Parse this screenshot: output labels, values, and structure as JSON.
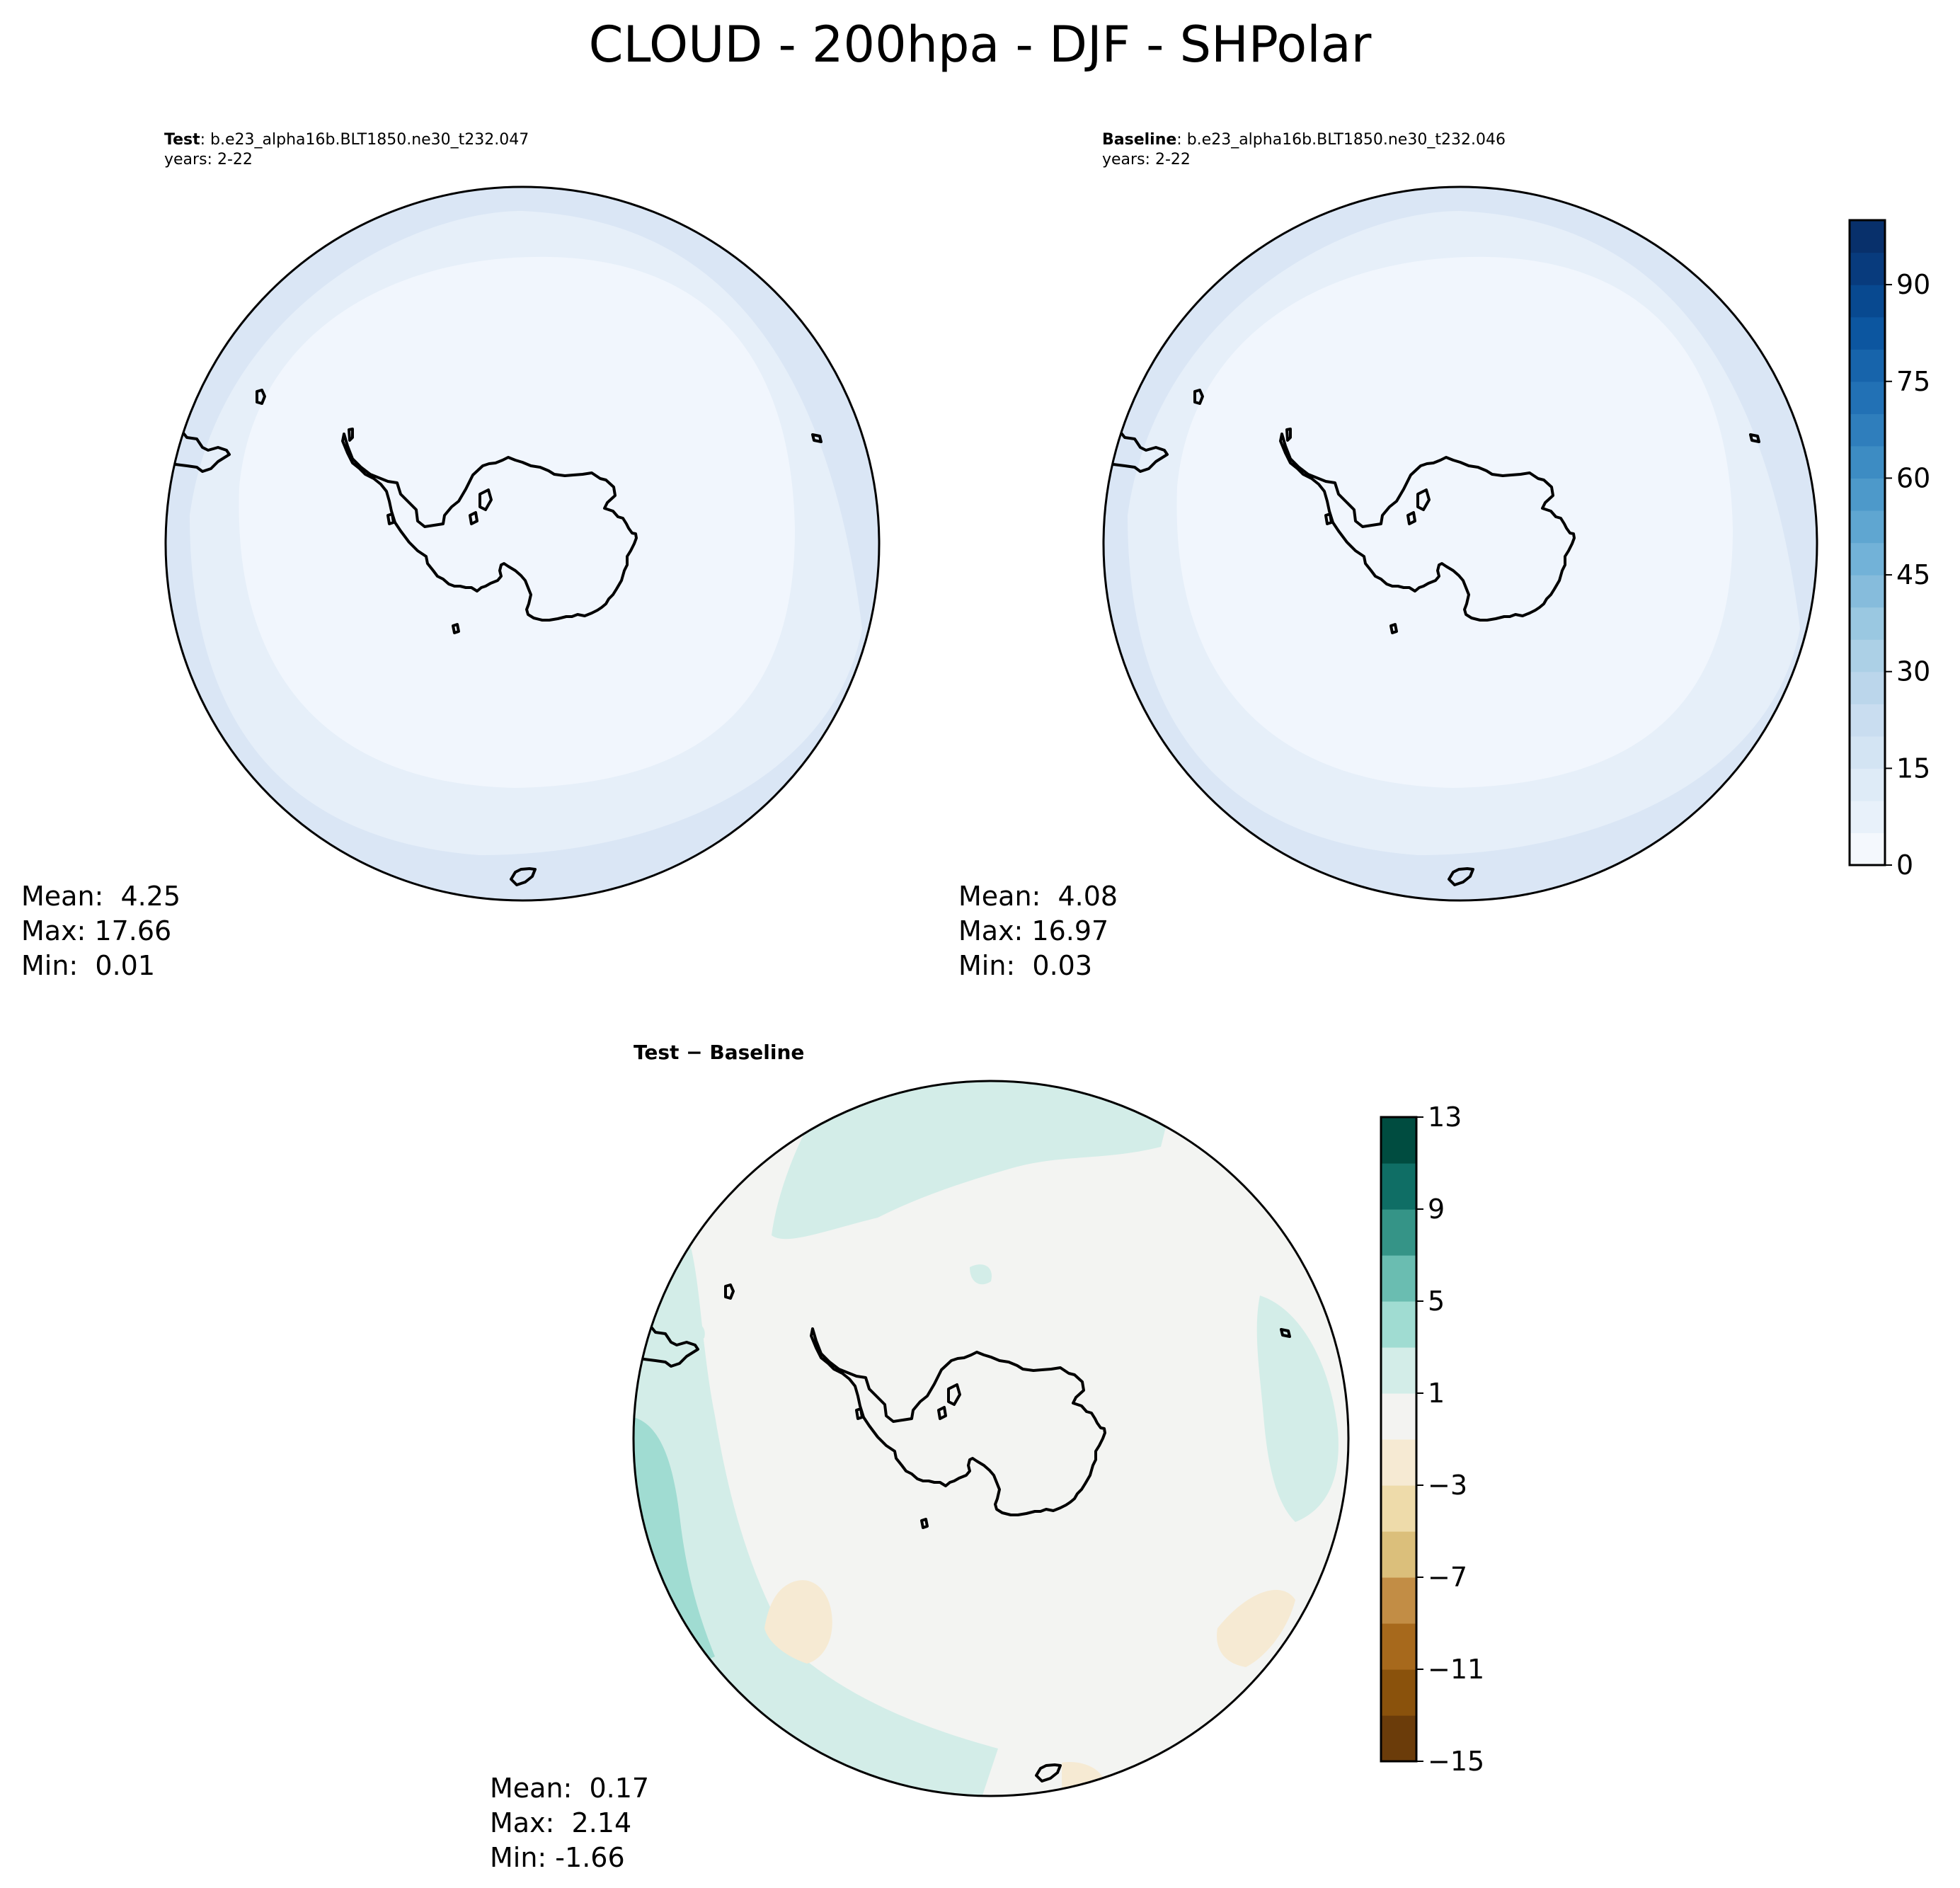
{
  "title": "CLOUD - 200hpa - DJF - SHPolar",
  "panels": {
    "test": {
      "label": "Test",
      "case": ": b.e23_alpha16b.BLT1850.ne30_t232.047",
      "years": "years: 2-22",
      "stats": {
        "mean": "Mean:  4.25",
        "max": "Max: 17.66",
        "min": "Min:  0.01"
      }
    },
    "baseline": {
      "label": "Baseline",
      "case": ": b.e23_alpha16b.BLT1850.ne30_t232.046",
      "years": "years: 2-22",
      "stats": {
        "mean": "Mean:  4.08",
        "max": "Max: 16.97",
        "min": "Min:  0.03"
      }
    },
    "diff": {
      "label": "Test − Baseline",
      "stats": {
        "mean": "Mean:  0.17",
        "max": "Max:  2.14",
        "min": "Min: -1.66"
      }
    }
  },
  "colors": {
    "blues": [
      "#f4f8fd",
      "#e8f1fa",
      "#deebf7",
      "#d3e4f3",
      "#c9ddf0",
      "#bbd6eb",
      "#acd0e6",
      "#9ac8e1",
      "#86bcdc",
      "#72b2d8",
      "#5fa6d1",
      "#4d99ca",
      "#3d8cc3",
      "#2f7ebc",
      "#2271b5",
      "#1764ab",
      "#0c56a0",
      "#084990",
      "#083b7d",
      "#08306b"
    ],
    "brbg": [
      "#6b3c0a",
      "#8a520c",
      "#a7691c",
      "#c28d45",
      "#dbbf7b",
      "#eedbaa",
      "#f6ead3",
      "#f3f3f1",
      "#d3ede8",
      "#a0dcd2",
      "#6abdb1",
      "#359487",
      "#0f6e65",
      "#004c40"
    ],
    "map_low": "#f1f6fd",
    "map_mid": "#e6eff9",
    "map_high": "#dae6f5",
    "diff_background": "#f3f4f2",
    "diff_positive": "#d3ede8",
    "diff_positive_strong": "#a0dcd2",
    "diff_negative": "#f6ead3",
    "coastline": "#000000"
  },
  "chart_data": [
    {
      "type": "heatmap",
      "title": "Test",
      "projection": "south-polar-stereographic",
      "colormap": "Blues",
      "clim": [
        0,
        100
      ],
      "summary": {
        "mean": 4.25,
        "max": 17.66,
        "min": 0.01
      }
    },
    {
      "type": "heatmap",
      "title": "Baseline",
      "projection": "south-polar-stereographic",
      "colormap": "Blues",
      "clim": [
        0,
        100
      ],
      "colorbar": {
        "ticks": [
          0,
          15,
          30,
          45,
          60,
          75,
          90
        ],
        "tick_labels": [
          "0",
          "15",
          "30",
          "45",
          "60",
          "75",
          "90"
        ]
      },
      "summary": {
        "mean": 4.08,
        "max": 16.97,
        "min": 0.03
      }
    },
    {
      "type": "heatmap",
      "title": "Test − Baseline",
      "projection": "south-polar-stereographic",
      "colormap": "BrBG",
      "clim": [
        -15,
        13
      ],
      "colorbar": {
        "ticks": [
          -15,
          -11,
          -7,
          -3,
          1,
          5,
          9,
          13
        ],
        "tick_labels": [
          "−15",
          "−11",
          "−7",
          "−3",
          "1",
          "5",
          "9",
          "13"
        ]
      },
      "summary": {
        "mean": 0.17,
        "max": 2.14,
        "min": -1.66
      }
    }
  ]
}
